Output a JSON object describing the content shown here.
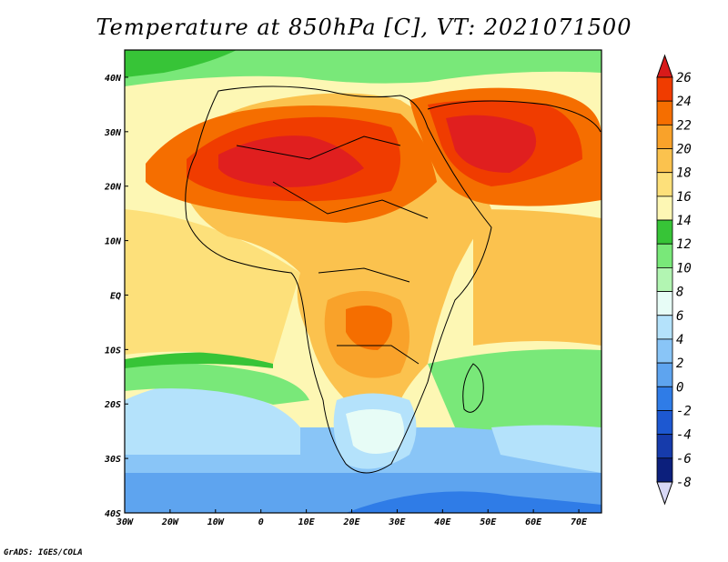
{
  "title": "Temperature at 850hPa [C], VT: 2021071500",
  "credit": "GrADS: IGES/COLA",
  "map": {
    "lon_labels": [
      "30W",
      "20W",
      "10W",
      "0",
      "10E",
      "20E",
      "30E",
      "40E",
      "50E",
      "60E",
      "70E"
    ],
    "lat_labels": [
      "40N",
      "30N",
      "20N",
      "10N",
      "EQ",
      "10S",
      "20S",
      "30S",
      "40S"
    ],
    "lon_range": [
      -30,
      75
    ],
    "lat_range": [
      -40,
      45
    ]
  },
  "colorbar": {
    "labels": [
      "26",
      "24",
      "22",
      "20",
      "18",
      "16",
      "14",
      "12",
      "10",
      "8",
      "6",
      "4",
      "2",
      "0",
      "-2",
      "-4",
      "-6",
      "-8"
    ],
    "colors": [
      "#e01f1f",
      "#f03c00",
      "#f56e00",
      "#f9a22a",
      "#fbc24e",
      "#fde07a",
      "#fdf7b4",
      "#37c437",
      "#79e879",
      "#b2f5b2",
      "#e7fcf6",
      "#b4e2fb",
      "#89c5f7",
      "#5ea4ef",
      "#2f7ce7",
      "#1d58d1",
      "#163bab",
      "#0c1f7c"
    ],
    "top_arrow_color": "#d81a1a",
    "bottom_arrow_color": "#d8d8f5"
  }
}
